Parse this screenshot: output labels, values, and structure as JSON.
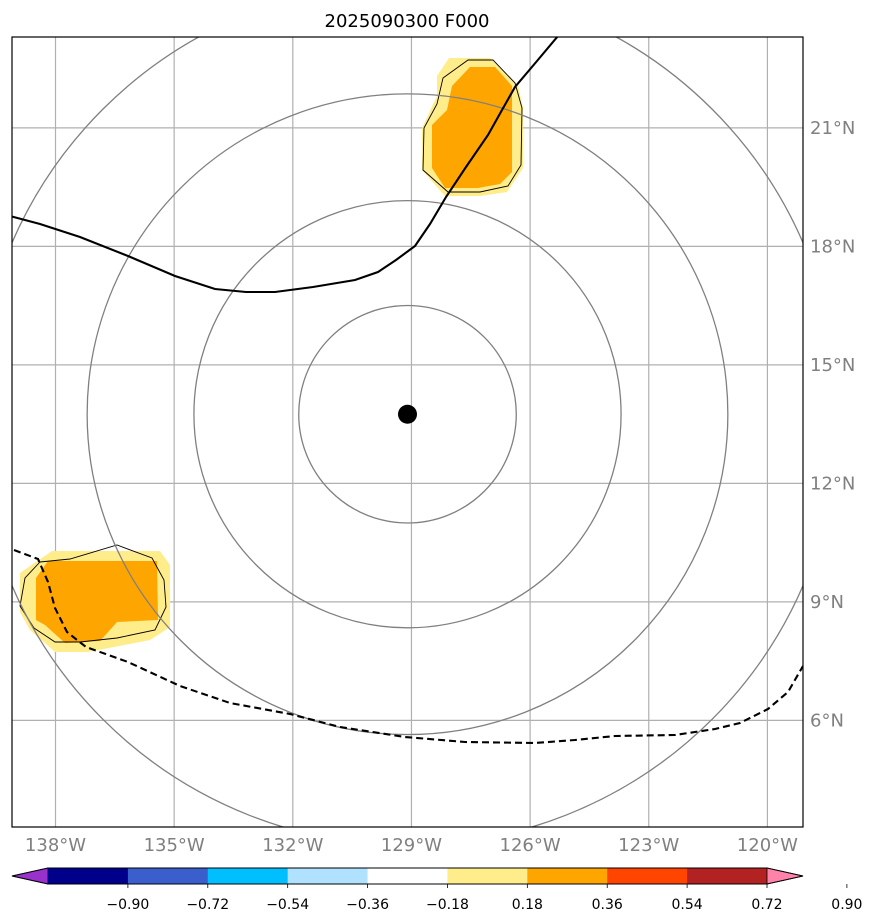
{
  "title": "2025090300 F000",
  "map": {
    "lon_range": [
      -139.1,
      -119.1
    ],
    "lat_range": [
      3.3,
      23.3
    ],
    "lon_ticks": [
      {
        "value": -138,
        "label": "138°W"
      },
      {
        "value": -135,
        "label": "135°W"
      },
      {
        "value": -132,
        "label": "132°W"
      },
      {
        "value": -129,
        "label": "129°W"
      },
      {
        "value": -126,
        "label": "126°W"
      },
      {
        "value": -123,
        "label": "123°W"
      },
      {
        "value": -120,
        "label": "120°W"
      }
    ],
    "lat_ticks": [
      {
        "value": 6,
        "label": "6°N"
      },
      {
        "value": 9,
        "label": "9°N"
      },
      {
        "value": 12,
        "label": "12°N"
      },
      {
        "value": 15,
        "label": "15°N"
      },
      {
        "value": 18,
        "label": "18°N"
      },
      {
        "value": 21,
        "label": "21°N"
      }
    ],
    "center": {
      "lon": -129.1,
      "lat": 13.75
    },
    "range_ring_radii_deg": [
      2.75,
      5.4,
      8.1,
      10.9
    ],
    "grid": true
  },
  "colorbar": {
    "colors": [
      "#9932cc",
      "#00008b",
      "#3a5fcd",
      "#00bfff",
      "#b0e2ff",
      "#ffffff",
      "#ffec8b",
      "#ffa500",
      "#ff4500",
      "#b22222",
      "#ff82ab"
    ],
    "tick_labels": [
      "−0.90",
      "−0.72",
      "−0.54",
      "−0.36",
      "−0.18",
      "0.18",
      "0.36",
      "0.54",
      "0.72",
      "0.90"
    ]
  },
  "colors": {
    "grid": "#b0b0b0",
    "range_ring": "#808080",
    "tick_label": "#808080",
    "level_low": "#ffec8b",
    "level_mid": "#ffa500"
  }
}
